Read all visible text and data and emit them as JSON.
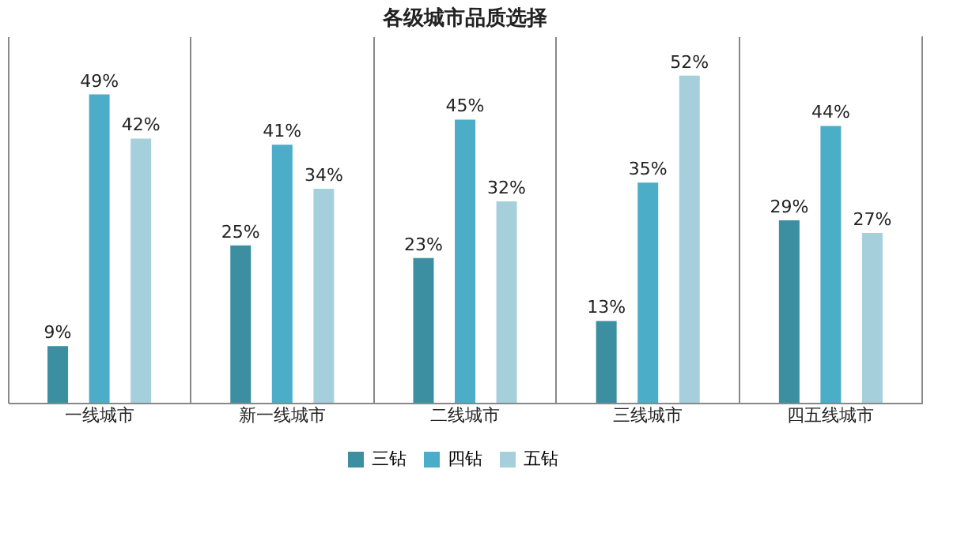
{
  "chart_data": {
    "type": "bar",
    "title": "各级城市品质选择",
    "categories": [
      "一线城市",
      "新一线城市",
      "二线城市",
      "三线城市",
      "四五线城市"
    ],
    "series": [
      {
        "name": "三钻",
        "color": "#3b8fa1",
        "values": [
          9,
          25,
          23,
          13,
          29
        ],
        "value_labels": [
          "9%",
          "25%",
          "23%",
          "13%",
          "29%"
        ]
      },
      {
        "name": "四钻",
        "color": "#4badc7",
        "values": [
          49,
          41,
          45,
          35,
          44
        ],
        "value_labels": [
          "49%",
          "41%",
          "45%",
          "35%",
          "44%"
        ]
      },
      {
        "name": "五钻",
        "color": "#a6cfdc",
        "values": [
          42,
          34,
          32,
          52,
          27
        ],
        "value_labels": [
          "42%",
          "34%",
          "32%",
          "52%",
          "27%"
        ]
      }
    ],
    "grid": "x",
    "legend": "bottom"
  }
}
